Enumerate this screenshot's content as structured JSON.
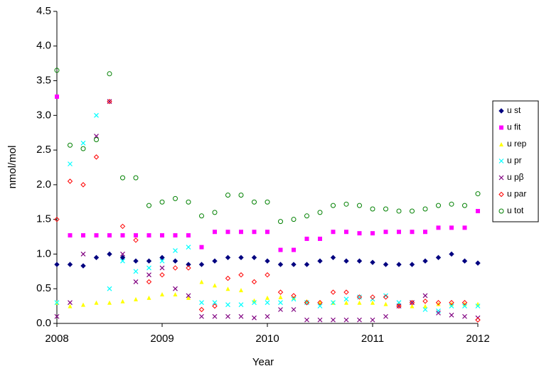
{
  "chart_data": {
    "type": "scatter",
    "xlabel": "Year",
    "ylabel": "nmol/mol",
    "xlim": [
      2008,
      2012
    ],
    "xticks": [
      2008,
      2009,
      2010,
      2011,
      2012
    ],
    "ylim": [
      0,
      4.5
    ],
    "yticks": [
      {
        "value": 0,
        "label": "0.0"
      },
      {
        "value": 0.5,
        "label": "0.5"
      },
      {
        "value": 1,
        "label": "1.0"
      },
      {
        "value": 1.5,
        "label": "1.5"
      },
      {
        "value": 2,
        "label": "2.0"
      },
      {
        "value": 2.5,
        "label": "2.5"
      },
      {
        "value": 3,
        "label": "3.0"
      },
      {
        "value": 3.5,
        "label": "3.5"
      },
      {
        "value": 4,
        "label": "4.0"
      },
      {
        "value": 4.5,
        "label": "4.5"
      }
    ],
    "legend": "right",
    "x": [
      2008,
      2008.125,
      2008.25,
      2008.375,
      2008.5,
      2008.625,
      2008.75,
      2008.875,
      2009,
      2009.125,
      2009.25,
      2009.375,
      2009.5,
      2009.625,
      2009.75,
      2009.875,
      2010,
      2010.125,
      2010.25,
      2010.375,
      2010.5,
      2010.625,
      2010.75,
      2010.875,
      2011,
      2011.125,
      2011.25,
      2011.375,
      2011.5,
      2011.625,
      2011.75,
      2011.875,
      2012
    ],
    "series": [
      {
        "name": "u st",
        "color": "#000080",
        "marker": "diamond",
        "values": [
          0.85,
          0.85,
          0.83,
          0.95,
          1.0,
          0.95,
          0.9,
          0.9,
          0.95,
          0.9,
          0.85,
          0.85,
          0.9,
          0.95,
          0.95,
          0.95,
          0.9,
          0.85,
          0.85,
          0.85,
          0.9,
          0.95,
          0.9,
          0.9,
          0.88,
          0.85,
          0.85,
          0.85,
          0.9,
          0.95,
          1.0,
          0.9,
          0.87
        ]
      },
      {
        "name": "u fit",
        "color": "#ff00ff",
        "marker": "square",
        "values": [
          3.27,
          1.27,
          1.27,
          1.27,
          1.27,
          1.27,
          1.27,
          1.27,
          1.27,
          1.27,
          1.27,
          1.1,
          1.32,
          1.32,
          1.32,
          1.32,
          1.32,
          1.06,
          1.06,
          1.22,
          1.22,
          1.32,
          1.32,
          1.3,
          1.3,
          1.32,
          1.32,
          1.32,
          1.32,
          1.38,
          1.38,
          1.38,
          1.62
        ]
      },
      {
        "name": "u rep",
        "color": "#ffff00",
        "marker": "triangle",
        "values": [
          0.3,
          0.25,
          0.27,
          0.3,
          0.3,
          0.32,
          0.35,
          0.37,
          0.42,
          0.42,
          0.37,
          0.6,
          0.55,
          0.5,
          0.48,
          0.33,
          0.37,
          0.38,
          0.37,
          0.32,
          0.3,
          0.3,
          0.3,
          0.3,
          0.3,
          0.28,
          0.28,
          0.25,
          0.25,
          0.28,
          0.28,
          0.28,
          0.28
        ]
      },
      {
        "name": "u pr",
        "color": "#00ffff",
        "marker": "x",
        "values": [
          0.3,
          2.3,
          2.6,
          3.0,
          0.5,
          0.9,
          0.75,
          0.8,
          0.9,
          1.05,
          1.1,
          0.3,
          0.3,
          0.27,
          0.27,
          0.3,
          0.3,
          0.3,
          0.35,
          0.3,
          0.25,
          0.3,
          0.35,
          0.38,
          0.35,
          0.4,
          0.3,
          0.3,
          0.2,
          0.18,
          0.25,
          0.25,
          0.25
        ]
      },
      {
        "name": "u pβ",
        "color": "#800080",
        "marker": "x",
        "values": [
          0.1,
          0.3,
          1.0,
          2.7,
          3.2,
          1.0,
          0.6,
          0.7,
          0.8,
          0.5,
          0.4,
          0.1,
          0.1,
          0.1,
          0.1,
          0.08,
          0.1,
          0.2,
          0.2,
          0.05,
          0.05,
          0.05,
          0.05,
          0.05,
          0.05,
          0.1,
          0.25,
          0.3,
          0.4,
          0.15,
          0.12,
          0.1,
          0.08
        ]
      },
      {
        "name": "u par",
        "color": "#ff0000",
        "marker": "diamond-open",
        "values": [
          1.5,
          2.05,
          2.0,
          2.4,
          3.2,
          1.4,
          1.2,
          0.6,
          0.7,
          0.8,
          0.8,
          0.2,
          0.25,
          0.65,
          0.7,
          0.6,
          0.7,
          0.45,
          0.4,
          0.3,
          0.3,
          0.45,
          0.45,
          0.38,
          0.38,
          0.38,
          0.25,
          0.3,
          0.32,
          0.3,
          0.3,
          0.3,
          0.05
        ]
      },
      {
        "name": "u tot",
        "color": "#008000",
        "marker": "circle-open",
        "values": [
          3.65,
          2.57,
          2.52,
          2.65,
          3.6,
          2.1,
          2.1,
          1.7,
          1.75,
          1.8,
          1.75,
          1.55,
          1.6,
          1.85,
          1.85,
          1.75,
          1.75,
          1.47,
          1.5,
          1.55,
          1.6,
          1.7,
          1.72,
          1.7,
          1.65,
          1.65,
          1.62,
          1.62,
          1.65,
          1.7,
          1.72,
          1.7,
          1.87
        ]
      }
    ]
  }
}
